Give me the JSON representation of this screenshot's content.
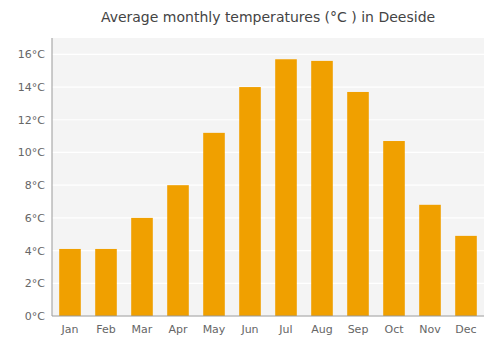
{
  "chart_data": {
    "type": "bar",
    "title": "Average monthly temperatures (°C ) in Deeside",
    "categories": [
      "Jan",
      "Feb",
      "Mar",
      "Apr",
      "May",
      "Jun",
      "Jul",
      "Aug",
      "Sep",
      "Oct",
      "Nov",
      "Dec"
    ],
    "values": [
      4.1,
      4.1,
      6.0,
      8.0,
      11.2,
      14.0,
      15.7,
      15.6,
      13.7,
      10.7,
      6.8,
      4.9
    ],
    "color": "#F0A000",
    "ylim": [
      0,
      17
    ],
    "yticks": [
      {
        "value": 0,
        "label": "0°C"
      },
      {
        "value": 2,
        "label": "2°C"
      },
      {
        "value": 4,
        "label": "4°C"
      },
      {
        "value": 6,
        "label": "6°C"
      },
      {
        "value": 8,
        "label": "8°C"
      },
      {
        "value": 10,
        "label": "10°C"
      },
      {
        "value": 12,
        "label": "12°C"
      },
      {
        "value": 14,
        "label": "14°C"
      },
      {
        "value": 16,
        "label": "16°C"
      }
    ],
    "grid": true
  }
}
